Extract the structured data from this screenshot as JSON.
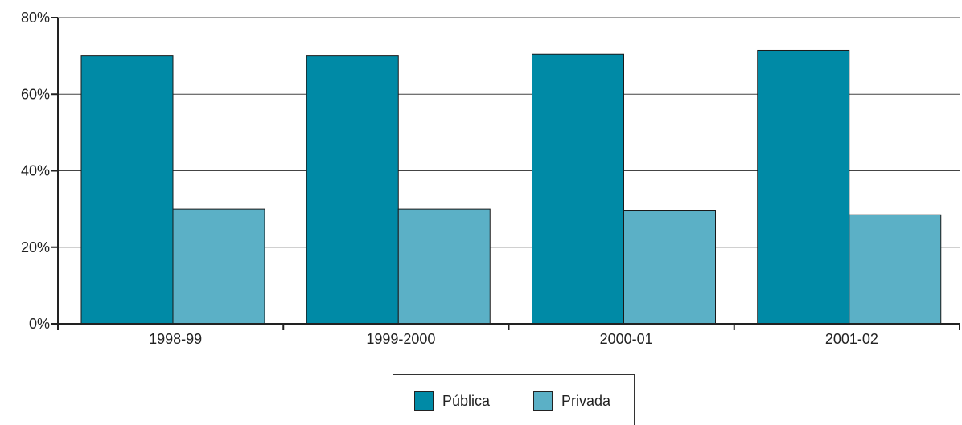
{
  "chart_data": {
    "type": "bar",
    "categories": [
      "1998-99",
      "1999-2000",
      "2000-01",
      "2001-02"
    ],
    "series": [
      {
        "name": "Pública",
        "values": [
          70,
          70,
          70.5,
          71.5
        ],
        "color": "#008aa6"
      },
      {
        "name": "Privada",
        "values": [
          30,
          30,
          29.5,
          28.5
        ],
        "color": "#5bb0c6"
      }
    ],
    "ylim": [
      0,
      80
    ],
    "yticks": [
      "0%",
      "20%",
      "40%",
      "60%",
      "80%"
    ],
    "ytick_values": [
      0,
      20,
      40,
      60,
      80
    ],
    "grid": true,
    "legend_position": "bottom-center"
  }
}
